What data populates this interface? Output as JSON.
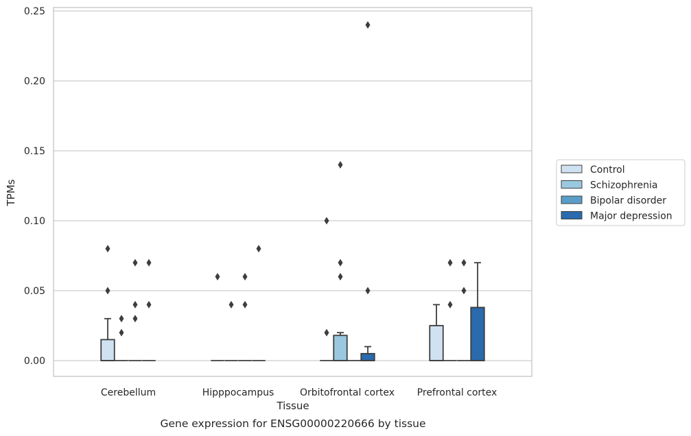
{
  "caption": "Gene expression for ENSG00000220666 by tissue",
  "chart_data": {
    "type": "box",
    "title": "",
    "xlabel": "Tissue",
    "ylabel": "TPMs",
    "categories": [
      "Cerebellum",
      "Hipppocampus",
      "Orbitofrontal cortex",
      "Prefrontal cortex"
    ],
    "yticks": [
      "0.00",
      "0.05",
      "0.10",
      "0.15",
      "0.20",
      "0.25"
    ],
    "ylim": [
      -0.0115,
      0.2525
    ],
    "grid": "horizontal",
    "legend_placement": "right",
    "series": [
      {
        "name": "Control",
        "color": "#d0e1f2",
        "boxes": [
          {
            "q1": 0,
            "q3": 0.015,
            "median": 0,
            "whisker_low": 0,
            "whisker_high": 0.03,
            "outliers": [
              0.08,
              0.05
            ]
          },
          {
            "q1": 0,
            "q3": 0,
            "median": 0,
            "whisker_low": 0,
            "whisker_high": 0,
            "outliers": [
              0.06
            ]
          },
          {
            "q1": 0,
            "q3": 0,
            "median": 0,
            "whisker_low": 0,
            "whisker_high": 0,
            "outliers": [
              0.1,
              0.02
            ]
          },
          {
            "q1": 0,
            "q3": 0.025,
            "median": 0,
            "whisker_low": 0,
            "whisker_high": 0.04,
            "outliers": []
          }
        ]
      },
      {
        "name": "Schizophrenia",
        "color": "#9ac8e0",
        "boxes": [
          {
            "q1": 0,
            "q3": 0,
            "median": 0,
            "whisker_low": 0,
            "whisker_high": 0,
            "outliers": [
              0.03,
              0.02
            ]
          },
          {
            "q1": 0,
            "q3": 0,
            "median": 0,
            "whisker_low": 0,
            "whisker_high": 0,
            "outliers": [
              0.04
            ]
          },
          {
            "q1": 0,
            "q3": 0.018,
            "median": 0,
            "whisker_low": 0,
            "whisker_high": 0.02,
            "outliers": [
              0.14,
              0.07,
              0.06
            ]
          },
          {
            "q1": 0,
            "q3": 0,
            "median": 0,
            "whisker_low": 0,
            "whisker_high": 0,
            "outliers": [
              0.07,
              0.04
            ]
          }
        ]
      },
      {
        "name": "Bipolar disorder",
        "color": "#5a9ec8",
        "boxes": [
          {
            "q1": 0,
            "q3": 0,
            "median": 0,
            "whisker_low": 0,
            "whisker_high": 0,
            "outliers": [
              0.07,
              0.04,
              0.03
            ]
          },
          {
            "q1": 0,
            "q3": 0,
            "median": 0,
            "whisker_low": 0,
            "whisker_high": 0,
            "outliers": [
              0.06,
              0.04
            ]
          },
          {
            "q1": 0,
            "q3": 0,
            "median": 0,
            "whisker_low": 0,
            "whisker_high": 0,
            "outliers": []
          },
          {
            "q1": 0,
            "q3": 0,
            "median": 0,
            "whisker_low": 0,
            "whisker_high": 0,
            "outliers": [
              0.07,
              0.05
            ]
          }
        ]
      },
      {
        "name": "Major depression",
        "color": "#2a6aad",
        "boxes": [
          {
            "q1": 0,
            "q3": 0,
            "median": 0,
            "whisker_low": 0,
            "whisker_high": 0,
            "outliers": [
              0.07,
              0.04
            ]
          },
          {
            "q1": 0,
            "q3": 0,
            "median": 0,
            "whisker_low": 0,
            "whisker_high": 0,
            "outliers": [
              0.08
            ]
          },
          {
            "q1": 0,
            "q3": 0.005,
            "median": 0,
            "whisker_low": 0,
            "whisker_high": 0.01,
            "outliers": [
              0.24,
              0.05
            ]
          },
          {
            "q1": 0,
            "q3": 0.038,
            "median": 0,
            "whisker_low": 0,
            "whisker_high": 0.07,
            "outliers": []
          }
        ]
      }
    ]
  }
}
